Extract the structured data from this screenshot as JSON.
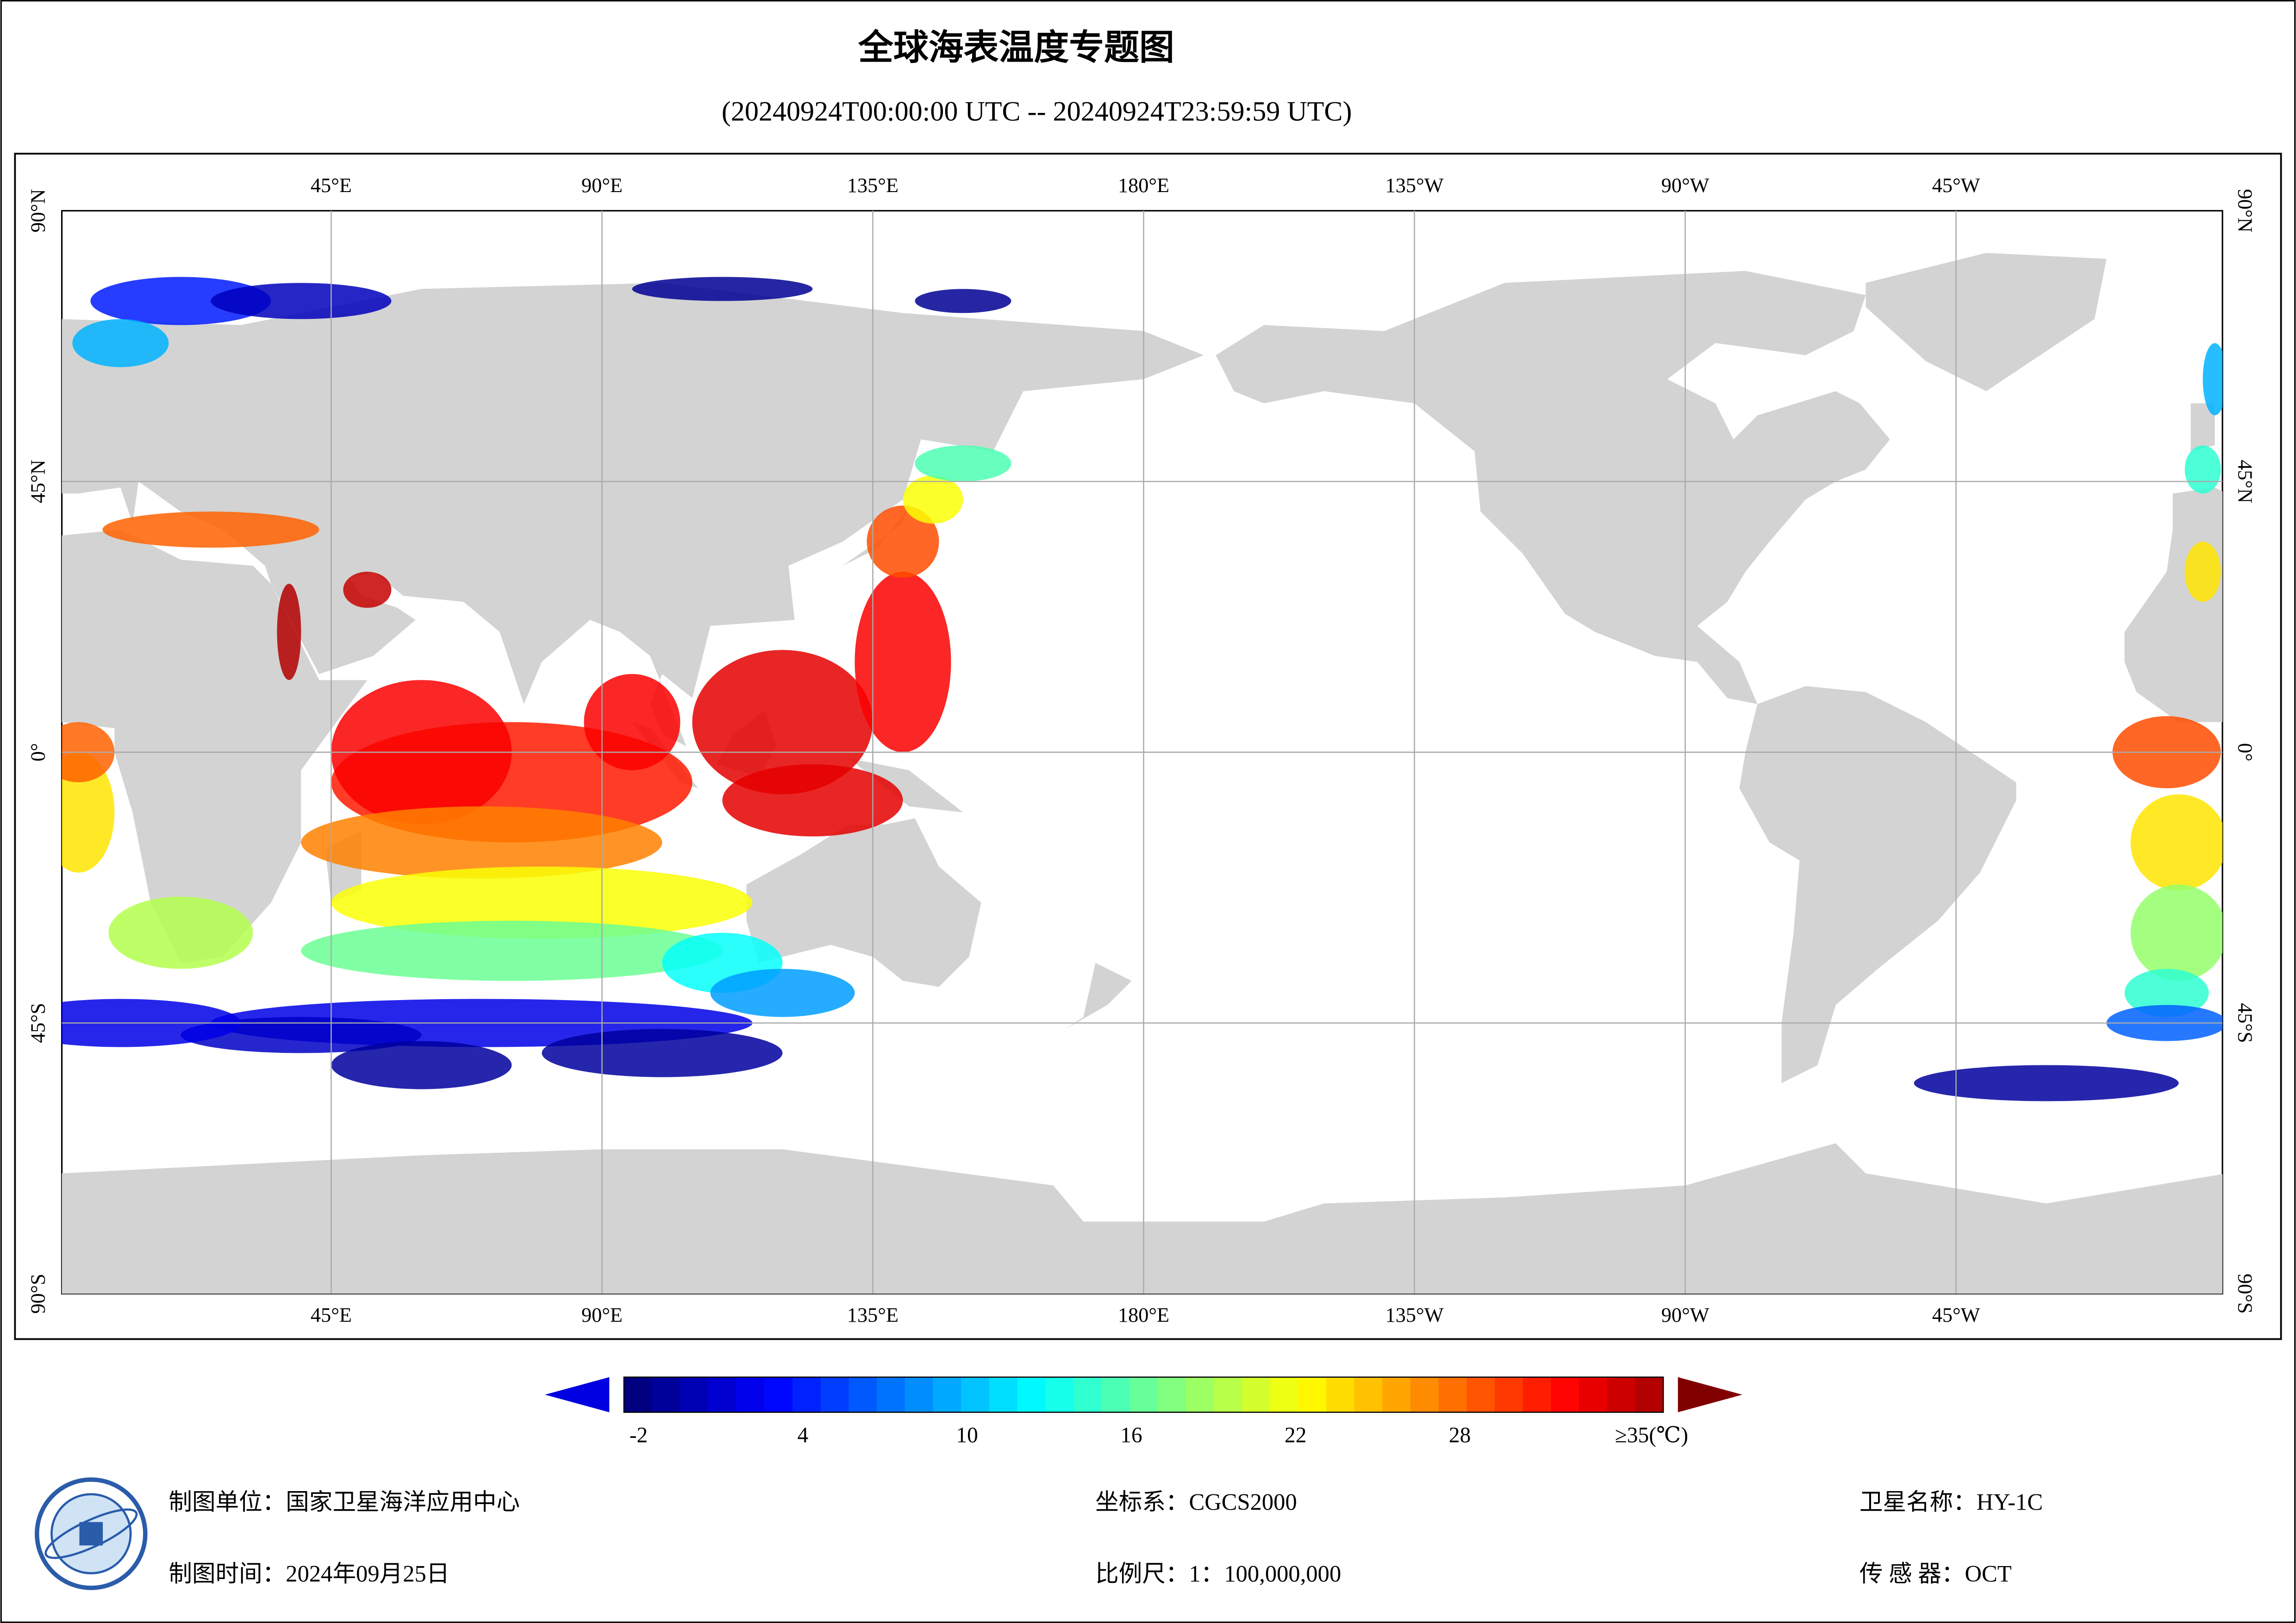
{
  "header": {
    "title": "全球海表温度专题图",
    "subtitle": "(20240924T00:00:00 UTC -- 20240924T23:59:59 UTC)"
  },
  "map": {
    "lon_labels": [
      "45°E",
      "90°E",
      "135°E",
      "180°E",
      "135°W",
      "90°W",
      "45°W"
    ],
    "lat_labels": [
      "90°N",
      "45°N",
      "0°",
      "45°S",
      "90°S"
    ]
  },
  "colorbar": {
    "ticks": [
      -2,
      4,
      10,
      16,
      22,
      28
    ],
    "max_label": "≥35(℃)"
  },
  "footer": {
    "unit": "制图单位：国家卫星海洋应用中心",
    "time": "制图时间：2024年09月25日",
    "crs": "坐标系：CGCS2000",
    "scale": "比例尺：1：100,000,000",
    "satellite": "卫星名称：HY-1C",
    "sensor": "传 感 器：OCT"
  }
}
